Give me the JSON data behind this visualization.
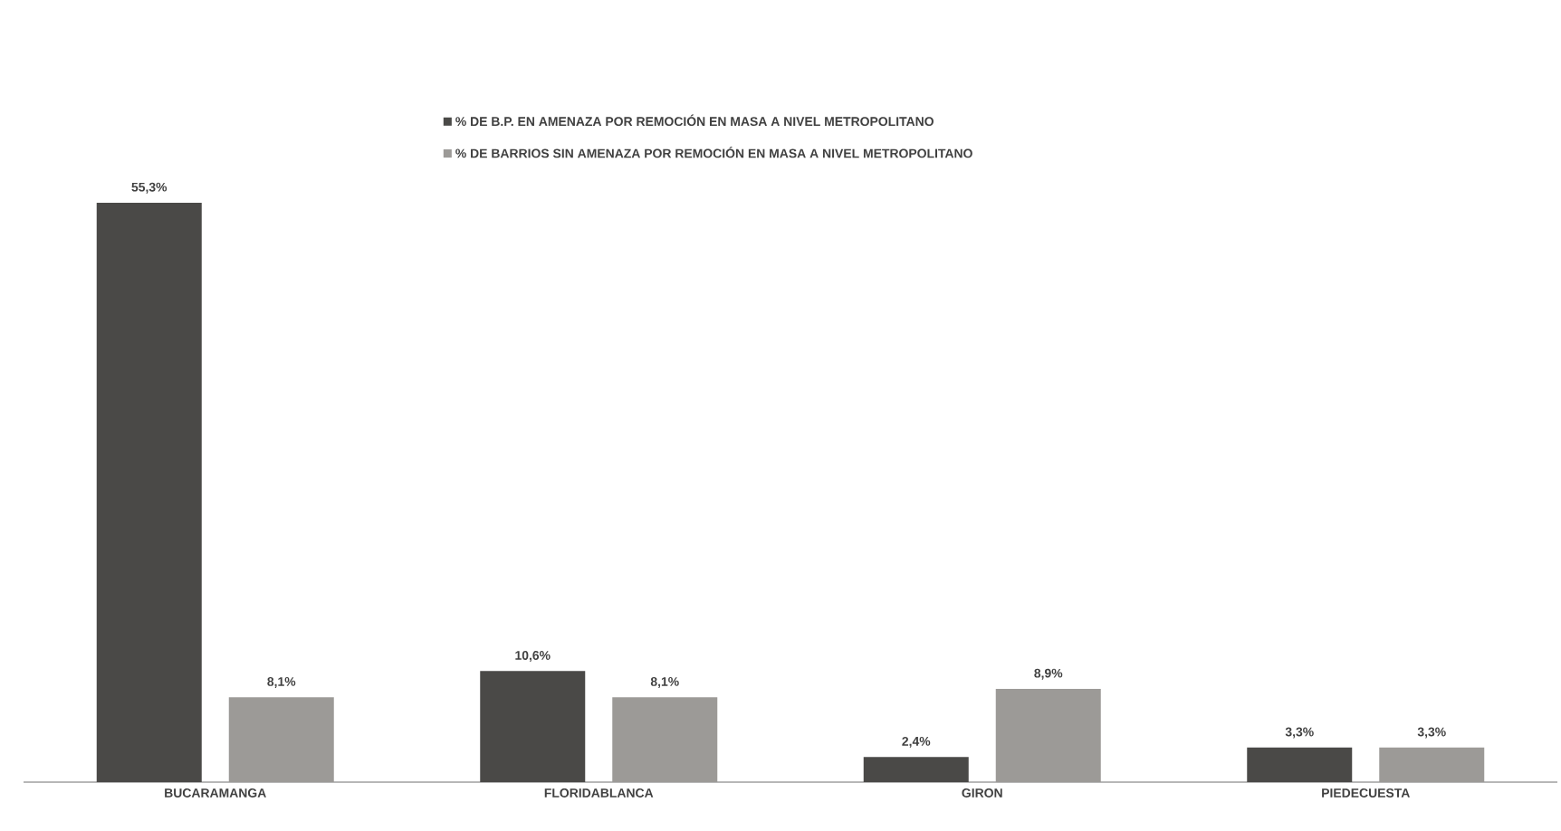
{
  "chart_data": {
    "type": "bar",
    "categories": [
      "BUCARAMANGA",
      "FLORIDABLANCA",
      "GIRON",
      "PIEDECUESTA"
    ],
    "series": [
      {
        "name": "% DE B.P. EN AMENAZA POR REMOCIÓN EN MASA A NIVEL METROPOLITANO",
        "color": "#4a4947",
        "values": [
          55.3,
          10.6,
          2.4,
          3.3
        ],
        "value_labels": [
          "55,3%",
          "10,6%",
          "2,4%",
          "3,3%"
        ]
      },
      {
        "name": "% DE BARRIOS SIN AMENAZA POR REMOCIÓN EN MASA A NIVEL METROPOLITANO",
        "color": "#9c9a97",
        "values": [
          8.1,
          8.1,
          8.9,
          3.3
        ],
        "value_labels": [
          "8,1%",
          "8,1%",
          "8,9%",
          "3,3%"
        ]
      }
    ],
    "legend": "top"
  }
}
